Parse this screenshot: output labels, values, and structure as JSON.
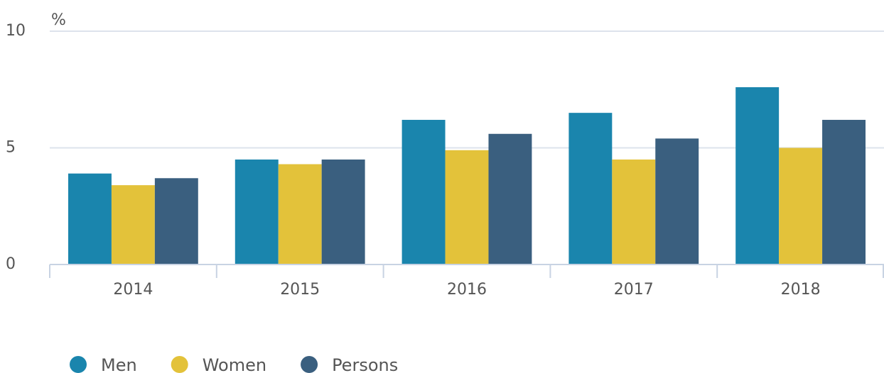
{
  "chart_data": {
    "type": "bar",
    "y_label": "%",
    "categories": [
      "2014",
      "2015",
      "2016",
      "2017",
      "2018"
    ],
    "series": [
      {
        "name": "Men",
        "color": "#1a85ad",
        "values": [
          3.9,
          4.5,
          6.2,
          6.5,
          7.6
        ]
      },
      {
        "name": "Women",
        "color": "#e3c23a",
        "values": [
          3.4,
          4.3,
          4.9,
          4.5,
          5.0
        ]
      },
      {
        "name": "Persons",
        "color": "#3a5f7f",
        "values": [
          3.7,
          4.5,
          5.6,
          5.4,
          6.2
        ]
      }
    ],
    "ylim": [
      0,
      10
    ],
    "yticks": [
      0,
      5,
      10
    ],
    "grid": true,
    "legend": "bottom-left"
  }
}
